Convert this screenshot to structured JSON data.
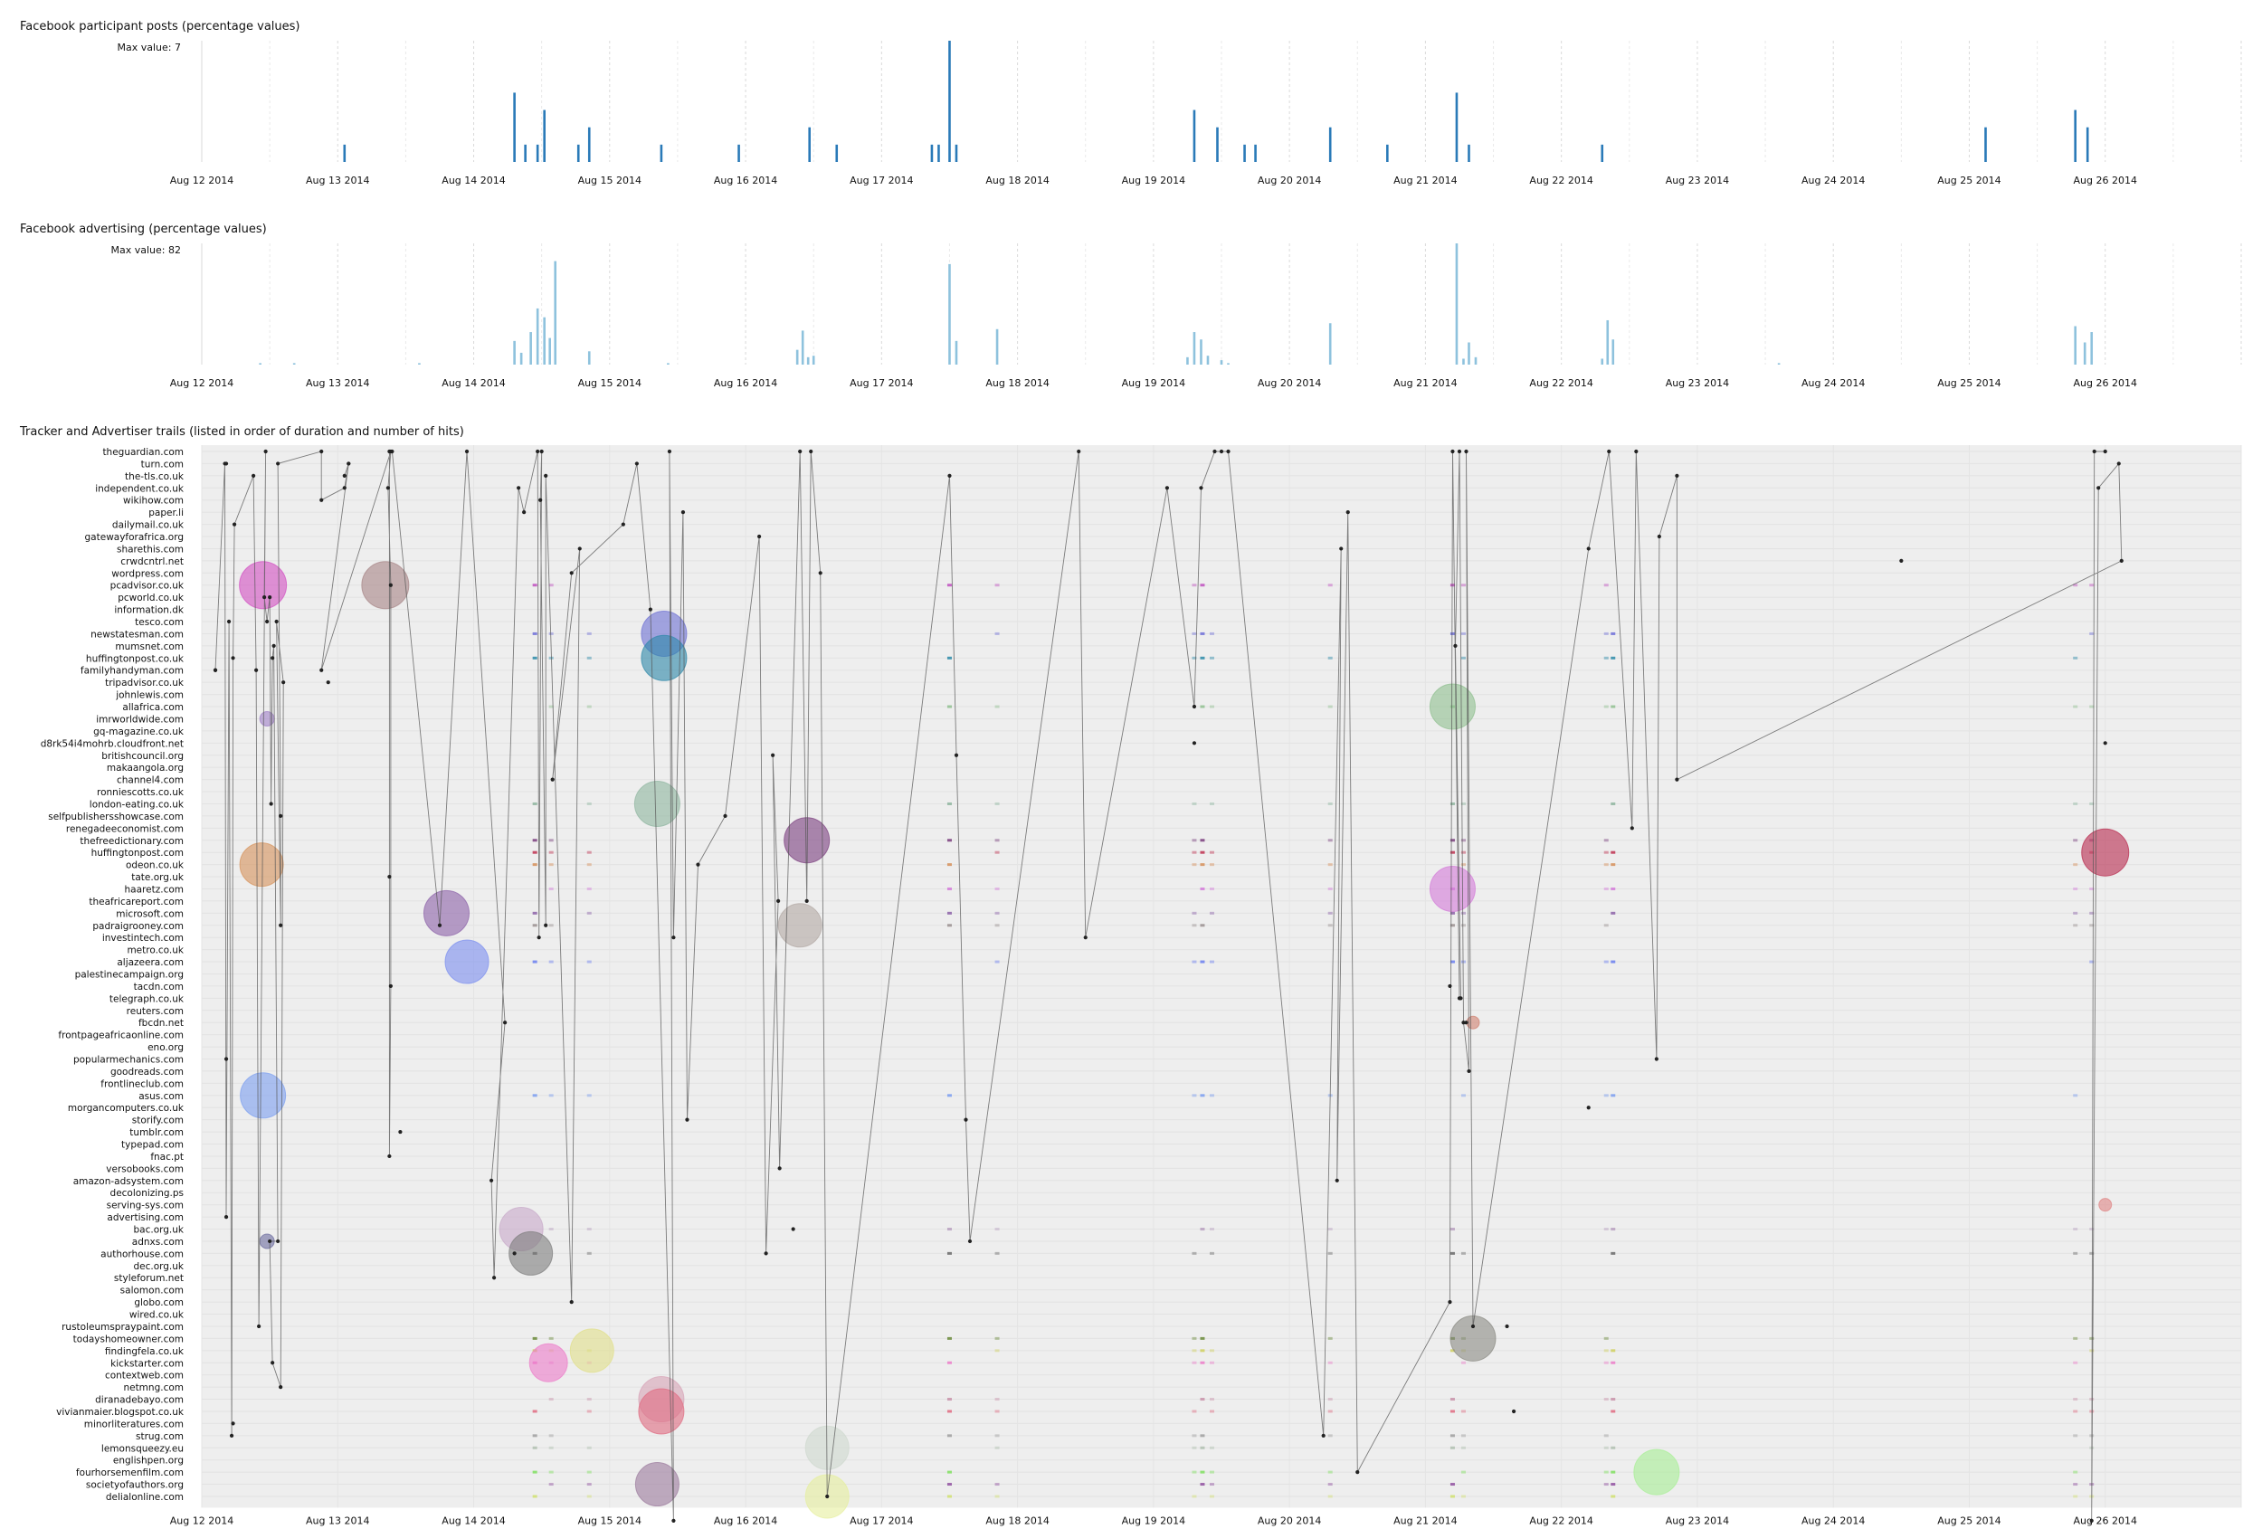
{
  "chart_data": [
    {
      "type": "bar",
      "title": "Facebook participant posts (percentage values)",
      "max_label": "Max value: 7",
      "x_ticks": [
        "Aug 12 2014",
        "Aug 13 2014",
        "Aug 14 2014",
        "Aug 15 2014",
        "Aug 16 2014",
        "Aug 17 2014",
        "Aug 18 2014",
        "Aug 19 2014",
        "Aug 20 2014",
        "Aug 21 2014",
        "Aug 22 2014",
        "Aug 23 2014",
        "Aug 24 2014",
        "Aug 25 2014",
        "Aug 26 2014"
      ],
      "xlim": [
        0,
        15
      ],
      "ylim": [
        0,
        7
      ],
      "grid": true,
      "color": "#2a7ab8",
      "bars": [
        {
          "x": 1.05,
          "y": 1
        },
        {
          "x": 2.3,
          "y": 4
        },
        {
          "x": 2.38,
          "y": 1
        },
        {
          "x": 2.47,
          "y": 1
        },
        {
          "x": 2.52,
          "y": 3
        },
        {
          "x": 2.77,
          "y": 1
        },
        {
          "x": 2.85,
          "y": 2
        },
        {
          "x": 3.38,
          "y": 1
        },
        {
          "x": 3.95,
          "y": 1
        },
        {
          "x": 4.47,
          "y": 2
        },
        {
          "x": 4.67,
          "y": 1
        },
        {
          "x": 5.37,
          "y": 1
        },
        {
          "x": 5.42,
          "y": 1
        },
        {
          "x": 5.5,
          "y": 7
        },
        {
          "x": 5.55,
          "y": 1
        },
        {
          "x": 7.3,
          "y": 3
        },
        {
          "x": 7.47,
          "y": 2
        },
        {
          "x": 7.67,
          "y": 1
        },
        {
          "x": 7.75,
          "y": 1
        },
        {
          "x": 8.3,
          "y": 2
        },
        {
          "x": 8.72,
          "y": 1
        },
        {
          "x": 9.23,
          "y": 4
        },
        {
          "x": 9.32,
          "y": 1
        },
        {
          "x": 10.3,
          "y": 1
        },
        {
          "x": 13.12,
          "y": 2
        },
        {
          "x": 13.78,
          "y": 3
        },
        {
          "x": 13.87,
          "y": 2
        }
      ]
    },
    {
      "type": "bar",
      "title": "Facebook advertising (percentage values)",
      "max_label": "Max value: 82",
      "x_ticks": [
        "Aug 12 2014",
        "Aug 13 2014",
        "Aug 14 2014",
        "Aug 15 2014",
        "Aug 16 2014",
        "Aug 17 2014",
        "Aug 18 2014",
        "Aug 19 2014",
        "Aug 20 2014",
        "Aug 21 2014",
        "Aug 22 2014",
        "Aug 23 2014",
        "Aug 24 2014",
        "Aug 25 2014",
        "Aug 26 2014"
      ],
      "xlim": [
        0,
        15
      ],
      "ylim": [
        0,
        82
      ],
      "grid": true,
      "color": "#8ec2dd",
      "bars": [
        {
          "x": 0.43,
          "y": 1
        },
        {
          "x": 0.68,
          "y": 1
        },
        {
          "x": 1.6,
          "y": 1
        },
        {
          "x": 2.3,
          "y": 16
        },
        {
          "x": 2.35,
          "y": 8
        },
        {
          "x": 2.42,
          "y": 22
        },
        {
          "x": 2.47,
          "y": 38
        },
        {
          "x": 2.52,
          "y": 32
        },
        {
          "x": 2.56,
          "y": 18
        },
        {
          "x": 2.6,
          "y": 70
        },
        {
          "x": 2.85,
          "y": 9
        },
        {
          "x": 3.43,
          "y": 1
        },
        {
          "x": 4.38,
          "y": 10
        },
        {
          "x": 4.42,
          "y": 23
        },
        {
          "x": 4.46,
          "y": 5
        },
        {
          "x": 4.5,
          "y": 6
        },
        {
          "x": 5.5,
          "y": 68
        },
        {
          "x": 5.55,
          "y": 16
        },
        {
          "x": 5.85,
          "y": 24
        },
        {
          "x": 7.25,
          "y": 5
        },
        {
          "x": 7.3,
          "y": 22
        },
        {
          "x": 7.35,
          "y": 17
        },
        {
          "x": 7.4,
          "y": 6
        },
        {
          "x": 7.5,
          "y": 3
        },
        {
          "x": 7.55,
          "y": 1
        },
        {
          "x": 8.3,
          "y": 28
        },
        {
          "x": 9.23,
          "y": 82
        },
        {
          "x": 9.28,
          "y": 4
        },
        {
          "x": 9.32,
          "y": 15
        },
        {
          "x": 9.37,
          "y": 5
        },
        {
          "x": 10.3,
          "y": 4
        },
        {
          "x": 10.34,
          "y": 30
        },
        {
          "x": 10.38,
          "y": 17
        },
        {
          "x": 11.6,
          "y": 1
        },
        {
          "x": 13.78,
          "y": 26
        },
        {
          "x": 13.85,
          "y": 15
        },
        {
          "x": 13.9,
          "y": 22
        }
      ]
    },
    {
      "type": "scatter",
      "title": "Tracker and Advertiser trails (listed in order of duration and number of hits)",
      "x_ticks": [
        "Aug 12 2014",
        "Aug 13 2014",
        "Aug 14 2014",
        "Aug 15 2014",
        "Aug 16 2014",
        "Aug 17 2014",
        "Aug 18 2014",
        "Aug 19 2014",
        "Aug 20 2014",
        "Aug 21 2014",
        "Aug 22 2014",
        "Aug 23 2014",
        "Aug 24 2014",
        "Aug 25 2014",
        "Aug 26 2014"
      ],
      "xlim": [
        0,
        15
      ],
      "grid": true,
      "rows": [
        "theguardian.com",
        "turn.com",
        "the-tls.co.uk",
        "independent.co.uk",
        "wikihow.com",
        "paper.li",
        "dailymail.co.uk",
        "gatewayforafrica.org",
        "sharethis.com",
        "crwdcntrl.net",
        "wordpress.com",
        "pcadvisor.co.uk",
        "pcworld.co.uk",
        "information.dk",
        "tesco.com",
        "newstatesman.com",
        "mumsnet.com",
        "huffingtonpost.co.uk",
        "familyhandyman.com",
        "tripadvisor.co.uk",
        "johnlewis.com",
        "allafrica.com",
        "imrworldwide.com",
        "gq-magazine.co.uk",
        "d8rk54i4mohrb.cloudfront.net",
        "britishcouncil.org",
        "makaangola.org",
        "channel4.com",
        "ronniescotts.co.uk",
        "london-eating.co.uk",
        "selfpublishersshowcase.com",
        "renegadeeconomist.com",
        "thefreedictionary.com",
        "huffingtonpost.com",
        "odeon.co.uk",
        "tate.org.uk",
        "haaretz.com",
        "theafricareport.com",
        "microsoft.com",
        "padraigrooney.com",
        "investintech.com",
        "metro.co.uk",
        "aljazeera.com",
        "palestinecampaign.org",
        "tacdn.com",
        "telegraph.co.uk",
        "reuters.com",
        "fbcdn.net",
        "frontpageafricaonline.com",
        "eno.org",
        "popularmechanics.com",
        "goodreads.com",
        "frontlineclub.com",
        "asus.com",
        "morgancomputers.co.uk",
        "storify.com",
        "tumblr.com",
        "typepad.com",
        "fnac.pt",
        "versobooks.com",
        "amazon-adsystem.com",
        "decolonizing.ps",
        "serving-sys.com",
        "advertising.com",
        "bac.org.uk",
        "adnxs.com",
        "authorhouse.com",
        "dec.org.uk",
        "styleforum.net",
        "salomon.com",
        "globo.com",
        "wired.co.uk",
        "rustoleumspraypaint.com",
        "todayshomeowner.com",
        "findingfela.co.uk",
        "kickstarter.com",
        "contextweb.com",
        "netmng.com",
        "diranadebayo.com",
        "vivianmaier.blogspot.co.uk",
        "minorliteratures.com",
        "strug.com",
        "lemonsqueezy.eu",
        "englishpen.org",
        "fourhorsemenfilm.com",
        "societyofauthors.org",
        "delialonline.com"
      ],
      "trail": [
        [
          0.1,
          18
        ],
        [
          0.17,
          1
        ],
        [
          0.18,
          63
        ],
        [
          0.2,
          14
        ],
        [
          0.22,
          81
        ],
        [
          0.23,
          17
        ],
        [
          0.24,
          6
        ],
        [
          0.38,
          2
        ],
        [
          0.4,
          18
        ],
        [
          0.42,
          72
        ],
        [
          0.47,
          0
        ],
        [
          0.46,
          12
        ],
        [
          0.48,
          14
        ],
        [
          0.5,
          12
        ],
        [
          0.51,
          29
        ],
        [
          0.52,
          17
        ],
        [
          0.53,
          16
        ],
        [
          0.56,
          65
        ],
        [
          0.5,
          65
        ],
        [
          0.52,
          75
        ],
        [
          0.58,
          77
        ],
        [
          0.6,
          19
        ],
        [
          0.55,
          14
        ],
        [
          0.58,
          39
        ],
        [
          0.58,
          30
        ],
        [
          0.56,
          1
        ],
        [
          0.88,
          0
        ],
        [
          0.88,
          4
        ],
        [
          1.05,
          3
        ],
        [
          1.08,
          1
        ],
        [
          1.05,
          2
        ],
        [
          1.08,
          1
        ],
        [
          0.88,
          18
        ],
        [
          1.39,
          0
        ],
        [
          1.37,
          3
        ],
        [
          1.39,
          11
        ],
        [
          1.39,
          44
        ],
        [
          1.38,
          58
        ],
        [
          1.38,
          35
        ],
        [
          1.38,
          0
        ],
        [
          1.4,
          0
        ],
        [
          1.75,
          39
        ],
        [
          1.95,
          0
        ],
        [
          2.23,
          47
        ],
        [
          2.13,
          60
        ],
        [
          2.15,
          68
        ],
        [
          2.33,
          3
        ],
        [
          2.37,
          5
        ],
        [
          2.47,
          0
        ],
        [
          2.48,
          40
        ],
        [
          2.5,
          0
        ],
        [
          2.49,
          4
        ],
        [
          2.53,
          39
        ],
        [
          2.53,
          2
        ],
        [
          2.72,
          70
        ],
        [
          2.78,
          8
        ],
        [
          2.58,
          27
        ],
        [
          2.72,
          10
        ],
        [
          3.1,
          6
        ],
        [
          3.2,
          1
        ],
        [
          3.3,
          13
        ],
        [
          3.47,
          88
        ],
        [
          3.44,
          0
        ],
        [
          3.47,
          40
        ],
        [
          3.54,
          5
        ],
        [
          3.57,
          55
        ],
        [
          3.65,
          34
        ],
        [
          3.85,
          30
        ],
        [
          4.1,
          7
        ],
        [
          4.15,
          66
        ],
        [
          4.24,
          37
        ],
        [
          4.2,
          25
        ],
        [
          4.25,
          59
        ],
        [
          4.4,
          0
        ],
        [
          4.45,
          37
        ],
        [
          4.48,
          0
        ],
        [
          4.55,
          10
        ],
        [
          4.6,
          86
        ],
        [
          5.5,
          2
        ],
        [
          5.55,
          25
        ],
        [
          5.62,
          55
        ],
        [
          5.65,
          65
        ],
        [
          6.45,
          0
        ],
        [
          6.5,
          40
        ],
        [
          7.1,
          3
        ],
        [
          7.3,
          21
        ],
        [
          7.35,
          3
        ],
        [
          7.45,
          0
        ],
        [
          7.5,
          0
        ],
        [
          7.55,
          0
        ],
        [
          8.25,
          81
        ],
        [
          8.38,
          8
        ],
        [
          8.35,
          60
        ],
        [
          8.43,
          5
        ],
        [
          8.5,
          84
        ],
        [
          9.18,
          70
        ],
        [
          9.2,
          0
        ],
        [
          9.25,
          45
        ],
        [
          9.26,
          45
        ],
        [
          9.22,
          16
        ],
        [
          9.25,
          0
        ],
        [
          9.28,
          47
        ],
        [
          9.32,
          51
        ],
        [
          9.3,
          0
        ],
        [
          9.35,
          72
        ],
        [
          10.2,
          8
        ],
        [
          10.35,
          0
        ],
        [
          10.52,
          31
        ],
        [
          10.55,
          0
        ],
        [
          10.7,
          50
        ],
        [
          10.72,
          7
        ],
        [
          10.85,
          2
        ],
        [
          10.85,
          27
        ],
        [
          14.12,
          9
        ],
        [
          14.1,
          1
        ],
        [
          13.95,
          3
        ],
        [
          13.9,
          88
        ],
        [
          13.92,
          0
        ],
        [
          14.0,
          0
        ]
      ],
      "dots": [
        {
          "x": 0.18,
          "row": 1
        },
        {
          "x": 0.18,
          "row": 50
        },
        {
          "x": 0.1,
          "row": 18
        },
        {
          "x": 0.23,
          "row": 80
        },
        {
          "x": 0.93,
          "row": 19
        },
        {
          "x": 1.46,
          "row": 56
        },
        {
          "x": 2.3,
          "row": 66
        },
        {
          "x": 4.35,
          "row": 64
        },
        {
          "x": 7.3,
          "row": 24
        },
        {
          "x": 9.6,
          "row": 72
        },
        {
          "x": 9.65,
          "row": 79
        },
        {
          "x": 10.2,
          "row": 54
        },
        {
          "x": 12.5,
          "row": 9
        },
        {
          "x": 14.0,
          "row": 24
        },
        {
          "x": 9.3,
          "row": 47
        },
        {
          "x": 9.18,
          "row": 44
        }
      ],
      "bubbles": [
        {
          "x": 0.45,
          "row": 11,
          "r": 26,
          "color": "#d24ec2"
        },
        {
          "x": 1.35,
          "row": 11,
          "r": 26,
          "color": "#a68486"
        },
        {
          "x": 3.4,
          "row": 15,
          "r": 25,
          "color": "#6c6fd3"
        },
        {
          "x": 3.4,
          "row": 17,
          "r": 25,
          "color": "#2c87a8"
        },
        {
          "x": 9.2,
          "row": 21,
          "r": 25,
          "color": "#8fbf8f"
        },
        {
          "x": 3.35,
          "row": 29,
          "r": 25,
          "color": "#8eb59f"
        },
        {
          "x": 4.45,
          "row": 32,
          "r": 25,
          "color": "#7a3d7e"
        },
        {
          "x": 14.0,
          "row": 33,
          "r": 26,
          "color": "#b8284c"
        },
        {
          "x": 0.44,
          "row": 34,
          "r": 24,
          "color": "#d6915a"
        },
        {
          "x": 9.2,
          "row": 36,
          "r": 25,
          "color": "#d37ad9"
        },
        {
          "x": 1.8,
          "row": 38,
          "r": 25,
          "color": "#8c61a8"
        },
        {
          "x": 4.4,
          "row": 39,
          "r": 24,
          "color": "#b2a8a4"
        },
        {
          "x": 1.95,
          "row": 42,
          "r": 24,
          "color": "#7b8ef0"
        },
        {
          "x": 0.45,
          "row": 53,
          "r": 25,
          "color": "#7b9ef0"
        },
        {
          "x": 2.35,
          "row": 64,
          "r": 24,
          "color": "#c8a9c9"
        },
        {
          "x": 2.42,
          "row": 66,
          "r": 24,
          "color": "#7d7d7d"
        },
        {
          "x": 9.35,
          "row": 73,
          "r": 25,
          "color": "#8a8a83"
        },
        {
          "x": 2.87,
          "row": 74,
          "r": 24,
          "color": "#e1e08a"
        },
        {
          "x": 2.55,
          "row": 75,
          "r": 21,
          "color": "#ec7cc9"
        },
        {
          "x": 3.38,
          "row": 78,
          "r": 25,
          "color": "#d7a3b6"
        },
        {
          "x": 3.38,
          "row": 79,
          "r": 25,
          "color": "#e06a80"
        },
        {
          "x": 4.6,
          "row": 82,
          "r": 24,
          "color": "#cfd8cf"
        },
        {
          "x": 10.7,
          "row": 84,
          "r": 25,
          "color": "#a7ef94"
        },
        {
          "x": 3.35,
          "row": 85,
          "r": 24,
          "color": "#9b7a9c"
        },
        {
          "x": 4.6,
          "row": 86,
          "r": 24,
          "color": "#e6ef9c"
        },
        {
          "x": 0.48,
          "row": 22,
          "r": 8,
          "color": "#a080c8"
        },
        {
          "x": 0.48,
          "row": 65,
          "r": 8,
          "color": "#6d6da0"
        },
        {
          "x": 9.35,
          "row": 47,
          "r": 7,
          "color": "#d08070"
        },
        {
          "x": 14.0,
          "row": 62,
          "r": 7,
          "color": "#e08585"
        }
      ],
      "burst_days": [
        2.45,
        2.57,
        2.85,
        5.5,
        5.85,
        7.3,
        7.36,
        7.43,
        8.3,
        9.2,
        9.28,
        10.33,
        10.38,
        13.78,
        13.9
      ],
      "burst_rows": [
        11,
        15,
        17,
        21,
        29,
        32,
        33,
        34,
        36,
        38,
        39,
        42,
        53,
        64,
        66,
        73,
        74,
        75,
        78,
        79,
        81,
        82,
        84,
        85,
        86
      ],
      "burst_colors": [
        "#c050c0",
        "#7070d8",
        "#2a8aa8",
        "#8fbf8f",
        "#8eb59f",
        "#7a3d7e",
        "#c03050",
        "#d6915a",
        "#d37ad9",
        "#8c61a8",
        "#9a9090",
        "#6a7ef0",
        "#7b9ef0",
        "#b8a0c0",
        "#6a6a6a",
        "#6a8a3a",
        "#d0d060",
        "#ec7cc9",
        "#c890a8",
        "#e06a80",
        "#a0a0a0",
        "#b0c0b0",
        "#80e060",
        "#9050a0",
        "#d0e070"
      ]
    }
  ]
}
